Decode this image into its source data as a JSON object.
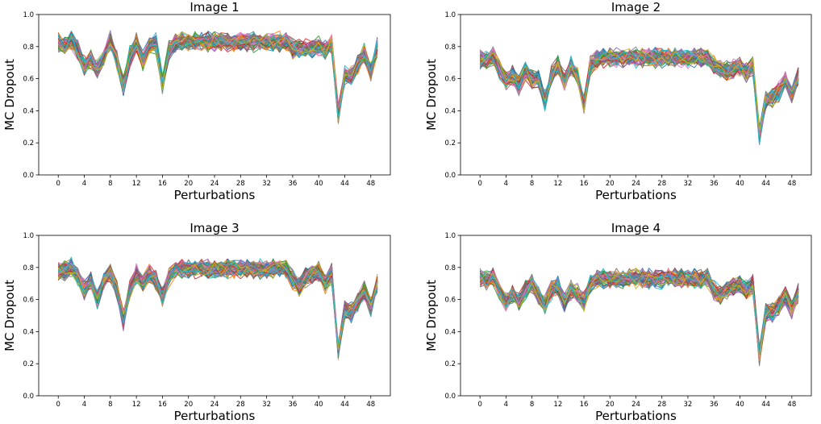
{
  "chart_data": [
    {
      "type": "line",
      "title": "Image 1",
      "xlabel": "Perturbations",
      "ylabel": "MC Dropout",
      "xlim": [
        -3,
        51
      ],
      "ylim": [
        0,
        1.0
      ],
      "xticks": [
        0,
        4,
        8,
        12,
        16,
        20,
        24,
        28,
        32,
        36,
        40,
        44,
        48
      ],
      "yticks": [
        0.0,
        0.2,
        0.4,
        0.6,
        0.8,
        1.0
      ],
      "grid": false,
      "legend": "none",
      "x": [
        0,
        1,
        2,
        3,
        4,
        5,
        6,
        7,
        8,
        9,
        10,
        11,
        12,
        13,
        14,
        15,
        16,
        17,
        18,
        19,
        20,
        21,
        22,
        23,
        24,
        25,
        26,
        27,
        28,
        29,
        30,
        31,
        32,
        33,
        34,
        35,
        36,
        37,
        38,
        39,
        40,
        41,
        42,
        43,
        44,
        45,
        46,
        47,
        48,
        49
      ],
      "mean": [
        0.82,
        0.81,
        0.84,
        0.78,
        0.68,
        0.72,
        0.66,
        0.73,
        0.83,
        0.72,
        0.55,
        0.74,
        0.82,
        0.71,
        0.8,
        0.82,
        0.57,
        0.78,
        0.82,
        0.83,
        0.83,
        0.83,
        0.83,
        0.83,
        0.83,
        0.83,
        0.83,
        0.83,
        0.83,
        0.83,
        0.83,
        0.83,
        0.83,
        0.83,
        0.83,
        0.83,
        0.79,
        0.79,
        0.79,
        0.79,
        0.8,
        0.78,
        0.82,
        0.38,
        0.62,
        0.62,
        0.69,
        0.76,
        0.65,
        0.8
      ],
      "spread": 0.07,
      "series_count": 60
    },
    {
      "type": "line",
      "title": "Image 2",
      "xlabel": "Perturbations",
      "ylabel": "MC Dropout",
      "xlim": [
        -3,
        51
      ],
      "ylim": [
        0,
        1.0
      ],
      "xticks": [
        0,
        4,
        8,
        12,
        16,
        20,
        24,
        28,
        32,
        36,
        40,
        44,
        48
      ],
      "yticks": [
        0.0,
        0.2,
        0.4,
        0.6,
        0.8,
        1.0
      ],
      "grid": false,
      "legend": "none",
      "x": [
        0,
        1,
        2,
        3,
        4,
        5,
        6,
        7,
        8,
        9,
        10,
        11,
        12,
        13,
        14,
        15,
        16,
        17,
        18,
        19,
        20,
        21,
        22,
        23,
        24,
        25,
        26,
        27,
        28,
        29,
        30,
        31,
        32,
        33,
        34,
        35,
        36,
        37,
        38,
        39,
        40,
        41,
        42,
        43,
        44,
        45,
        46,
        47,
        48,
        49
      ],
      "mean": [
        0.72,
        0.71,
        0.74,
        0.66,
        0.58,
        0.62,
        0.56,
        0.65,
        0.6,
        0.6,
        0.46,
        0.62,
        0.68,
        0.58,
        0.68,
        0.62,
        0.44,
        0.68,
        0.72,
        0.73,
        0.73,
        0.73,
        0.73,
        0.73,
        0.73,
        0.73,
        0.73,
        0.73,
        0.73,
        0.73,
        0.73,
        0.73,
        0.73,
        0.73,
        0.73,
        0.73,
        0.68,
        0.66,
        0.65,
        0.66,
        0.68,
        0.64,
        0.68,
        0.25,
        0.46,
        0.48,
        0.52,
        0.6,
        0.5,
        0.62
      ],
      "spread": 0.07,
      "series_count": 60
    },
    {
      "type": "line",
      "title": "Image 3",
      "xlabel": "Perturbations",
      "ylabel": "MC Dropout",
      "xlim": [
        -3,
        51
      ],
      "ylim": [
        0,
        1.0
      ],
      "xticks": [
        0,
        4,
        8,
        12,
        16,
        20,
        24,
        28,
        32,
        36,
        40,
        44,
        48
      ],
      "yticks": [
        0.0,
        0.2,
        0.4,
        0.6,
        0.8,
        1.0
      ],
      "grid": false,
      "legend": "none",
      "x": [
        0,
        1,
        2,
        3,
        4,
        5,
        6,
        7,
        8,
        9,
        10,
        11,
        12,
        13,
        14,
        15,
        16,
        17,
        18,
        19,
        20,
        21,
        22,
        23,
        24,
        25,
        26,
        27,
        28,
        29,
        30,
        31,
        32,
        33,
        34,
        35,
        36,
        37,
        38,
        39,
        40,
        41,
        42,
        43,
        44,
        45,
        46,
        47,
        48,
        49
      ],
      "mean": [
        0.78,
        0.78,
        0.8,
        0.74,
        0.66,
        0.72,
        0.6,
        0.72,
        0.76,
        0.66,
        0.47,
        0.66,
        0.76,
        0.7,
        0.76,
        0.72,
        0.62,
        0.74,
        0.78,
        0.79,
        0.79,
        0.79,
        0.79,
        0.79,
        0.79,
        0.79,
        0.79,
        0.79,
        0.79,
        0.79,
        0.79,
        0.79,
        0.79,
        0.79,
        0.79,
        0.79,
        0.72,
        0.68,
        0.74,
        0.76,
        0.78,
        0.7,
        0.76,
        0.28,
        0.54,
        0.52,
        0.58,
        0.66,
        0.56,
        0.7
      ],
      "spread": 0.07,
      "series_count": 60
    },
    {
      "type": "line",
      "title": "Image 4",
      "xlabel": "Perturbations",
      "ylabel": "MC Dropout",
      "xlim": [
        -3,
        51
      ],
      "ylim": [
        0,
        1.0
      ],
      "xticks": [
        0,
        4,
        8,
        12,
        16,
        20,
        24,
        28,
        32,
        36,
        40,
        44,
        48
      ],
      "yticks": [
        0.0,
        0.2,
        0.4,
        0.6,
        0.8,
        1.0
      ],
      "grid": false,
      "legend": "none",
      "x": [
        0,
        1,
        2,
        3,
        4,
        5,
        6,
        7,
        8,
        9,
        10,
        11,
        12,
        13,
        14,
        15,
        16,
        17,
        18,
        19,
        20,
        21,
        22,
        23,
        24,
        25,
        26,
        27,
        28,
        29,
        30,
        31,
        32,
        33,
        34,
        35,
        36,
        37,
        38,
        39,
        40,
        41,
        42,
        43,
        44,
        45,
        46,
        47,
        48,
        49
      ],
      "mean": [
        0.73,
        0.72,
        0.74,
        0.66,
        0.58,
        0.64,
        0.58,
        0.66,
        0.7,
        0.62,
        0.56,
        0.66,
        0.68,
        0.58,
        0.66,
        0.64,
        0.58,
        0.7,
        0.73,
        0.73,
        0.73,
        0.73,
        0.73,
        0.73,
        0.73,
        0.73,
        0.73,
        0.73,
        0.73,
        0.73,
        0.73,
        0.73,
        0.73,
        0.73,
        0.73,
        0.73,
        0.66,
        0.62,
        0.66,
        0.68,
        0.7,
        0.66,
        0.7,
        0.25,
        0.52,
        0.52,
        0.56,
        0.62,
        0.54,
        0.64
      ],
      "spread": 0.07,
      "series_count": 60
    }
  ],
  "colors": [
    "#1f77b4",
    "#ff7f0e",
    "#2ca02c",
    "#d62728",
    "#9467bd",
    "#8c564b",
    "#e377c2",
    "#7f7f7f",
    "#bcbd22",
    "#17becf"
  ]
}
